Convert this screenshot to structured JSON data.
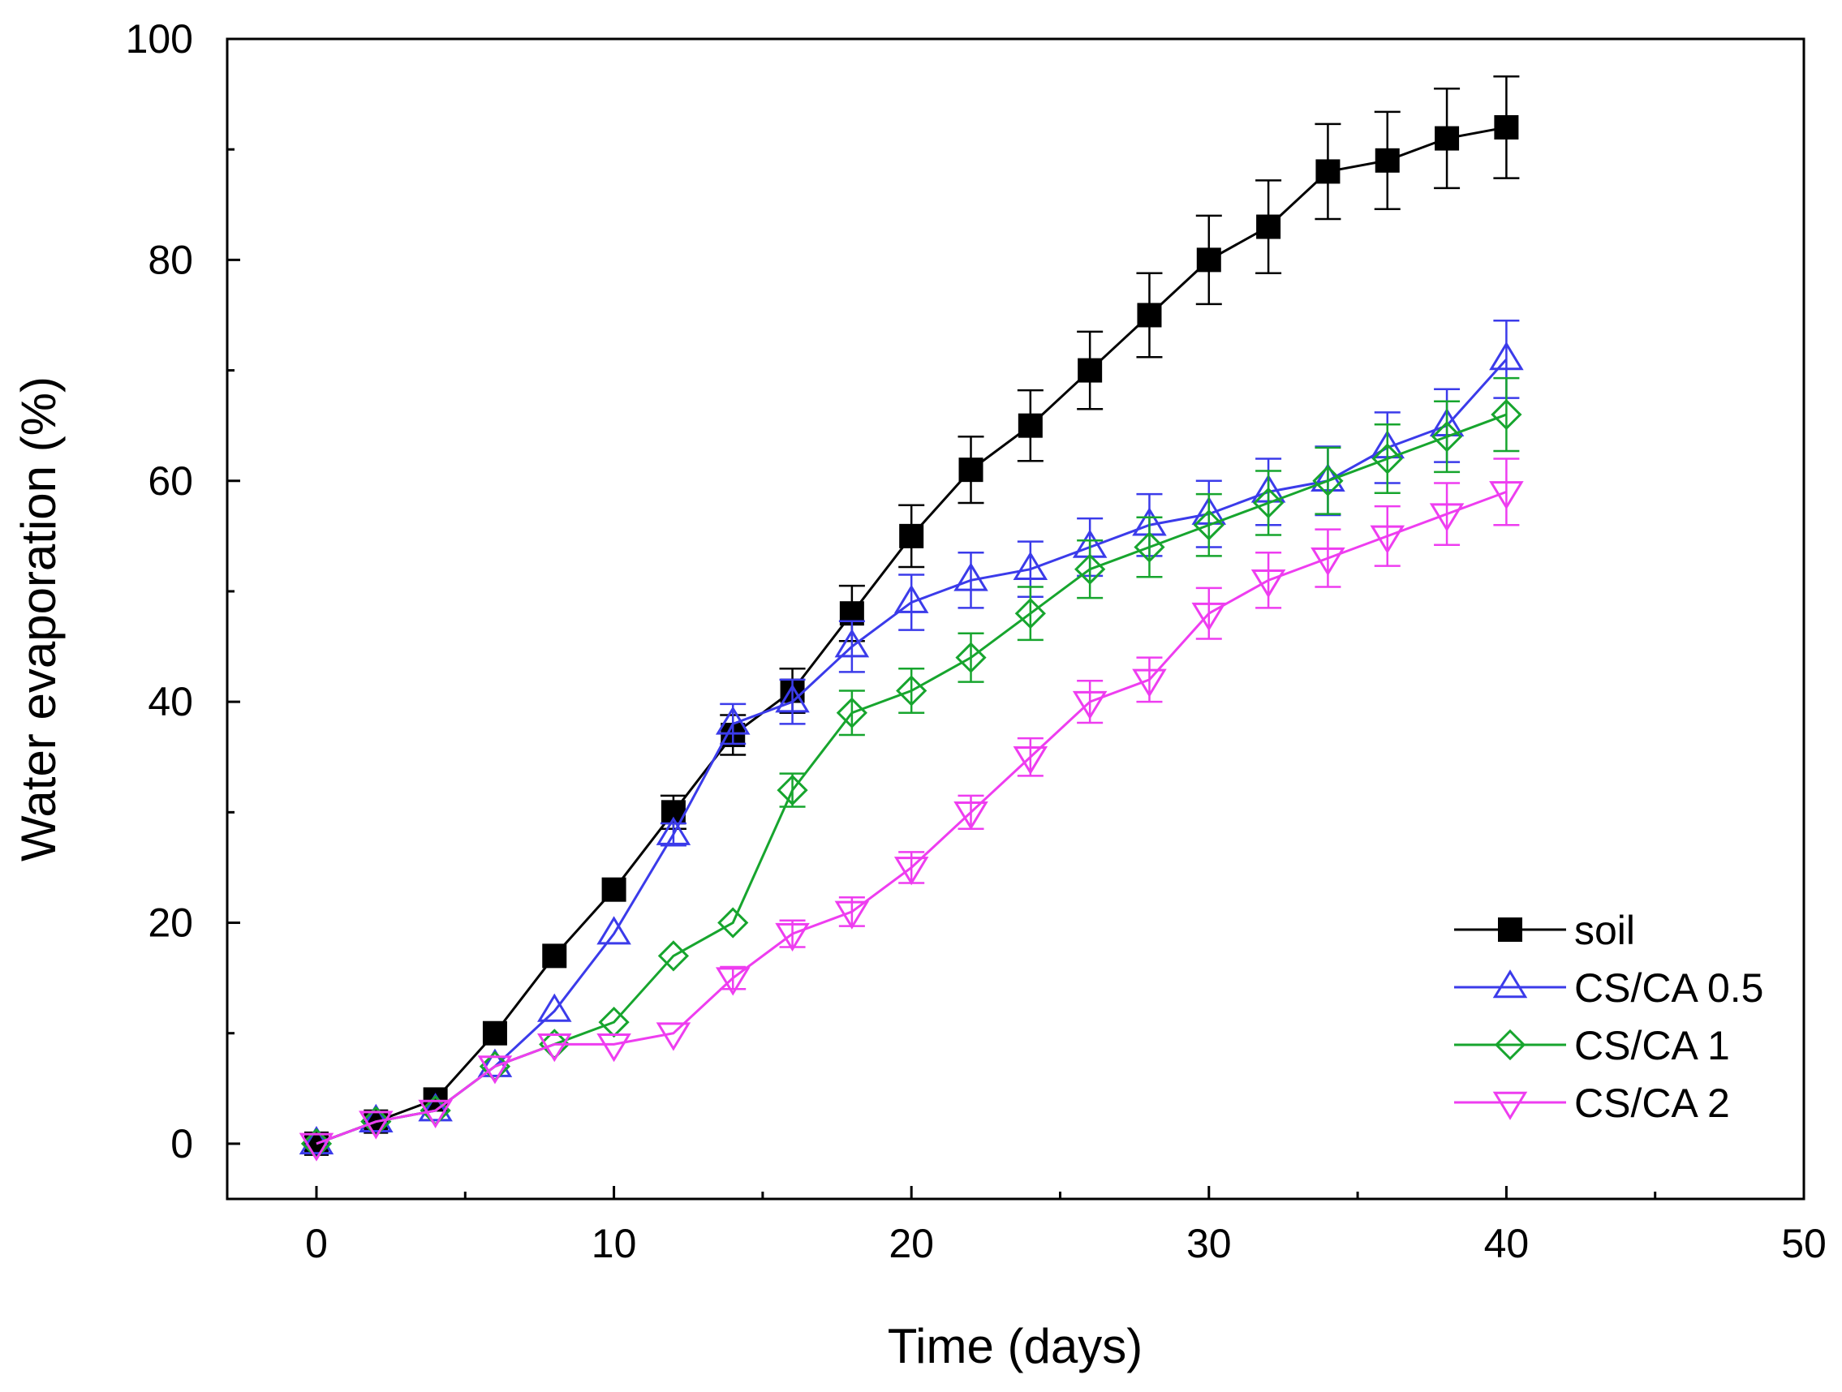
{
  "chart_data": {
    "type": "line",
    "title": "",
    "xlabel": "Time (days)",
    "ylabel": "Water evaporation (%)",
    "xlim": [
      -3,
      50
    ],
    "ylim": [
      -5,
      100
    ],
    "xticks": [
      0,
      10,
      20,
      30,
      40,
      50
    ],
    "yticks": [
      0,
      20,
      40,
      60,
      80,
      100
    ],
    "xtick_labels": [
      "0",
      "10",
      "20",
      "30",
      "40",
      "50"
    ],
    "ytick_labels": [
      "0",
      "20",
      "40",
      "60",
      "80",
      "100"
    ],
    "x": [
      0,
      2,
      4,
      6,
      8,
      10,
      12,
      14,
      16,
      18,
      20,
      22,
      24,
      26,
      28,
      30,
      32,
      34,
      36,
      38,
      40
    ],
    "legend_position": "bottom-right",
    "grid": false,
    "series": [
      {
        "name": "soil",
        "color": "#000000",
        "marker": "filled-square",
        "values": [
          0,
          2,
          4,
          10,
          17,
          23,
          30,
          37,
          41,
          48,
          55,
          61,
          65,
          70,
          75,
          80,
          83,
          88,
          89,
          91,
          92
        ],
        "errors": [
          0,
          0,
          0,
          0,
          0,
          0,
          1.5,
          1.8,
          2,
          2.5,
          2.8,
          3,
          3.2,
          3.5,
          3.8,
          4,
          4.2,
          4.3,
          4.4,
          4.5,
          4.6
        ]
      },
      {
        "name": "CS/CA 0.5",
        "color": "#3b3bea",
        "marker": "open-triangle-up",
        "values": [
          0,
          2,
          3,
          7,
          12,
          19,
          28,
          38,
          40,
          45,
          49,
          51,
          52,
          54,
          56,
          57,
          59,
          60,
          63,
          65,
          71
        ],
        "errors": [
          0,
          0,
          0,
          0,
          0,
          0,
          1,
          1.8,
          2,
          2.3,
          2.5,
          2.5,
          2.5,
          2.6,
          2.8,
          3,
          3,
          3.1,
          3.2,
          3.3,
          3.5
        ]
      },
      {
        "name": "CS/CA 1",
        "color": "#17a52e",
        "marker": "open-diamond",
        "values": [
          0,
          2,
          3,
          7,
          9,
          11,
          17,
          20,
          32,
          39,
          41,
          44,
          48,
          52,
          54,
          56,
          58,
          60,
          62,
          64,
          66
        ],
        "errors": [
          0,
          0,
          0,
          0,
          0,
          0,
          0,
          0,
          1.5,
          2,
          2,
          2.2,
          2.4,
          2.6,
          2.7,
          2.8,
          2.9,
          3,
          3.1,
          3.2,
          3.3
        ]
      },
      {
        "name": "CS/CA 2",
        "color": "#ee3df0",
        "marker": "open-triangle-down",
        "values": [
          0,
          2,
          3,
          7,
          9,
          9,
          10,
          15,
          19,
          21,
          25,
          30,
          35,
          40,
          42,
          48,
          51,
          53,
          55,
          57,
          59
        ],
        "errors": [
          0,
          0,
          0,
          0,
          0,
          0,
          0,
          1,
          1.2,
          1.3,
          1.4,
          1.5,
          1.7,
          1.9,
          2,
          2.3,
          2.5,
          2.6,
          2.7,
          2.8,
          3
        ]
      }
    ]
  }
}
